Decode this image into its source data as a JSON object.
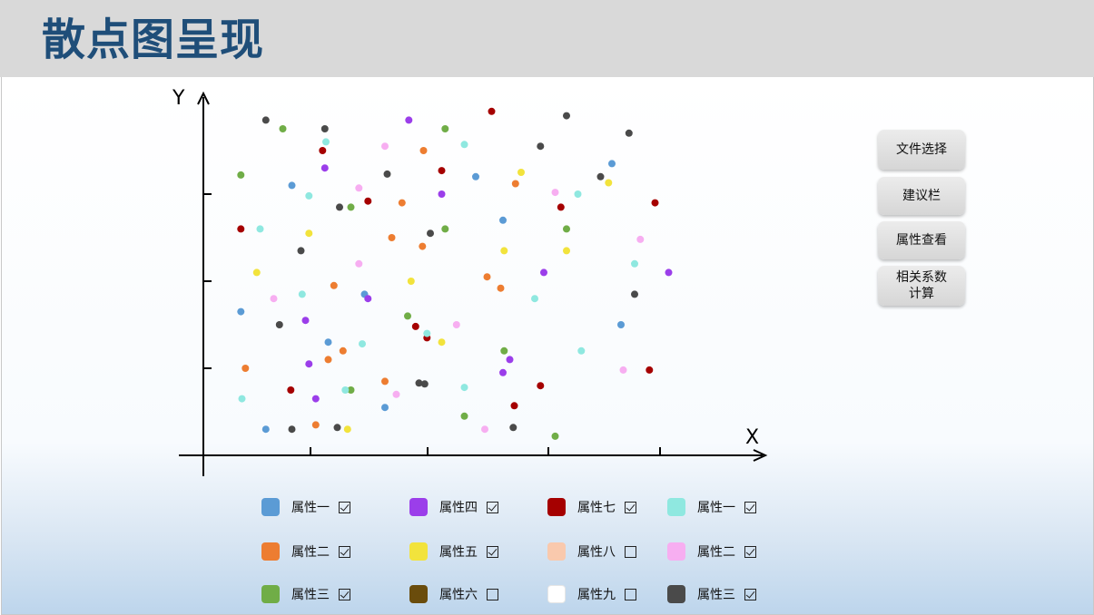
{
  "header": {
    "title": "散点图呈现"
  },
  "sidebar": {
    "buttons": [
      {
        "label": "文件选择"
      },
      {
        "label": "建议栏"
      },
      {
        "label": "属性查看"
      },
      {
        "label": "相关系数\n计算"
      }
    ]
  },
  "chart_data": {
    "type": "scatter",
    "xlabel": "X",
    "ylabel": "Y",
    "xlim": [
      0,
      5
    ],
    "ylim": [
      0,
      4
    ],
    "xticks": [
      1,
      2,
      3,
      4
    ],
    "yticks": [
      1,
      2,
      3
    ],
    "series": [
      {
        "name": "属性一",
        "color": "#5b9bd5",
        "points": [
          [
            0.33,
            1.65
          ],
          [
            0.55,
            0.3
          ],
          [
            0.78,
            3.1
          ],
          [
            1.1,
            1.3
          ],
          [
            1.42,
            1.85
          ],
          [
            1.6,
            0.55
          ],
          [
            2.4,
            3.2
          ],
          [
            2.64,
            2.7
          ],
          [
            3.6,
            3.35
          ],
          [
            3.68,
            1.5
          ]
        ]
      },
      {
        "name": "属性二",
        "color": "#ed7d31",
        "points": [
          [
            0.37,
            1.0
          ],
          [
            0.99,
            0.35
          ],
          [
            1.1,
            1.1
          ],
          [
            1.15,
            1.95
          ],
          [
            1.23,
            1.2
          ],
          [
            1.6,
            0.85
          ],
          [
            1.66,
            2.5
          ],
          [
            1.75,
            2.9
          ],
          [
            1.93,
            2.4
          ],
          [
            1.94,
            3.5
          ],
          [
            2.5,
            2.05
          ],
          [
            2.62,
            1.92
          ],
          [
            2.75,
            3.12
          ]
        ]
      },
      {
        "name": "属性三",
        "color": "#70ad47",
        "points": [
          [
            0.33,
            3.22
          ],
          [
            0.7,
            3.75
          ],
          [
            1.3,
            2.85
          ],
          [
            1.3,
            0.75
          ],
          [
            1.8,
            1.6
          ],
          [
            2.13,
            2.6
          ],
          [
            2.13,
            3.75
          ],
          [
            2.3,
            0.45
          ],
          [
            2.65,
            1.2
          ],
          [
            3.1,
            0.22
          ],
          [
            3.2,
            2.6
          ]
        ]
      },
      {
        "name": "属性四",
        "color": "#9b3eea",
        "points": [
          [
            0.9,
            1.55
          ],
          [
            0.93,
            1.05
          ],
          [
            0.99,
            0.65
          ],
          [
            1.07,
            3.3
          ],
          [
            1.45,
            1.8
          ],
          [
            1.81,
            3.85
          ],
          [
            2.1,
            3.0
          ],
          [
            2.64,
            0.95
          ],
          [
            2.7,
            1.1
          ],
          [
            3.0,
            2.1
          ],
          [
            4.1,
            2.1
          ]
        ]
      },
      {
        "name": "属性五",
        "color": "#f2e33c",
        "points": [
          [
            0.47,
            2.1
          ],
          [
            0.93,
            2.55
          ],
          [
            1.27,
            0.3
          ],
          [
            1.83,
            2.0
          ],
          [
            2.1,
            1.3
          ],
          [
            2.65,
            2.35
          ],
          [
            2.8,
            3.25
          ],
          [
            3.2,
            2.35
          ],
          [
            3.57,
            3.13
          ]
        ]
      },
      {
        "name": "属性七",
        "color": "#a50000",
        "points": [
          [
            0.33,
            2.6
          ],
          [
            0.77,
            0.75
          ],
          [
            1.05,
            3.5
          ],
          [
            1.45,
            2.92
          ],
          [
            1.87,
            1.48
          ],
          [
            1.97,
            1.35
          ],
          [
            2.1,
            3.27
          ],
          [
            2.54,
            3.95
          ],
          [
            2.74,
            0.57
          ],
          [
            2.97,
            0.8
          ],
          [
            3.15,
            2.85
          ],
          [
            3.93,
            0.98
          ],
          [
            3.98,
            2.9
          ]
        ]
      },
      {
        "name": "属性一",
        "color": "#8fe8e0",
        "points": [
          [
            0.34,
            0.65
          ],
          [
            0.5,
            2.6
          ],
          [
            0.87,
            1.85
          ],
          [
            0.93,
            2.98
          ],
          [
            1.08,
            3.6
          ],
          [
            1.25,
            0.75
          ],
          [
            1.4,
            1.28
          ],
          [
            1.97,
            1.4
          ],
          [
            2.3,
            0.78
          ],
          [
            2.3,
            3.57
          ],
          [
            2.92,
            1.8
          ],
          [
            3.3,
            3.0
          ],
          [
            3.33,
            1.2
          ],
          [
            3.8,
            2.2
          ]
        ]
      },
      {
        "name": "属性二",
        "color": "#f7aef1",
        "points": [
          [
            0.62,
            1.8
          ],
          [
            1.37,
            2.2
          ],
          [
            1.37,
            3.07
          ],
          [
            1.6,
            3.55
          ],
          [
            1.7,
            0.7
          ],
          [
            2.23,
            1.5
          ],
          [
            2.48,
            0.3
          ],
          [
            3.1,
            3.02
          ],
          [
            3.7,
            0.98
          ],
          [
            3.85,
            2.48
          ]
        ]
      },
      {
        "name": "属性三",
        "color": "#4a4a4a",
        "points": [
          [
            0.55,
            3.85
          ],
          [
            0.67,
            1.5
          ],
          [
            0.78,
            0.3
          ],
          [
            0.86,
            2.35
          ],
          [
            1.07,
            3.75
          ],
          [
            1.2,
            2.85
          ],
          [
            1.18,
            0.32
          ],
          [
            1.62,
            3.23
          ],
          [
            1.9,
            0.83
          ],
          [
            1.95,
            0.82
          ],
          [
            2.0,
            2.55
          ],
          [
            2.73,
            0.32
          ],
          [
            2.97,
            3.55
          ],
          [
            3.2,
            3.9
          ],
          [
            3.5,
            3.2
          ],
          [
            3.75,
            3.7
          ],
          [
            3.8,
            1.85
          ]
        ]
      }
    ]
  },
  "legend": [
    {
      "label": "属性一",
      "color": "#5b9bd5",
      "checked": true
    },
    {
      "label": "属性二",
      "color": "#ed7d31",
      "checked": true
    },
    {
      "label": "属性三",
      "color": "#70ad47",
      "checked": true
    },
    {
      "label": "属性四",
      "color": "#9b3eea",
      "checked": true
    },
    {
      "label": "属性五",
      "color": "#f2e33c",
      "checked": true
    },
    {
      "label": "属性六",
      "color": "#6a4c0c",
      "checked": false
    },
    {
      "label": "属性七",
      "color": "#a50000",
      "checked": true
    },
    {
      "label": "属性八",
      "color": "#f9c9ad",
      "checked": false
    },
    {
      "label": "属性九",
      "color": "#ffffff",
      "checked": false
    },
    {
      "label": "属性一",
      "color": "#8fe8e0",
      "checked": true
    },
    {
      "label": "属性二",
      "color": "#f7aef1",
      "checked": true
    },
    {
      "label": "属性三",
      "color": "#4a4a4a",
      "checked": true
    }
  ]
}
